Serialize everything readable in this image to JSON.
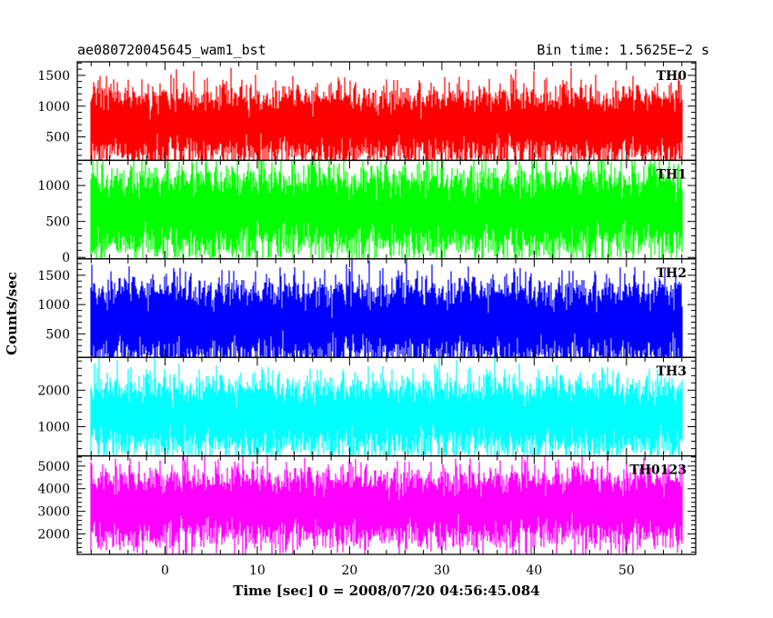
{
  "chart_data": {
    "type": "line",
    "title_left": "ae080720045645_wam1_bst",
    "title_right": "Bin time: 1.5625E−2 s",
    "ylabel": "Counts/sec",
    "xlabel": "Time [sec] 0 = 2008/07/20 04:56:45.084",
    "xlim": [
      -9.5,
      57.5
    ],
    "x_data_range": [
      -8,
      56
    ],
    "xticks_major": [
      0,
      10,
      20,
      30,
      40,
      50
    ],
    "xtick_minor_step": 2,
    "panels": [
      {
        "name": "TH0",
        "color": "#ff0000",
        "ylim": [
          120,
          1720
        ],
        "yticks": [
          500,
          1000,
          1500
        ],
        "ytick_minor_step": 100,
        "mean": 700,
        "typical_low": 300,
        "typical_high": 1500
      },
      {
        "name": "TH1",
        "color": "#00ff00",
        "ylim": [
          -20,
          1350
        ],
        "yticks": [
          0,
          500,
          1000
        ],
        "ytick_minor_step": 100,
        "mean": 650,
        "typical_low": 100,
        "typical_high": 1300
      },
      {
        "name": "TH2",
        "color": "#0000ff",
        "ylim": [
          100,
          1780
        ],
        "yticks": [
          500,
          1000,
          1500
        ],
        "ytick_minor_step": 100,
        "mean": 700,
        "typical_low": 200,
        "typical_high": 1650
      },
      {
        "name": "TH3",
        "color": "#00ffff",
        "ylim": [
          200,
          2900
        ],
        "yticks": [
          1000,
          2000
        ],
        "ytick_minor_step": 200,
        "mean": 1300,
        "typical_low": 500,
        "typical_high": 2600
      },
      {
        "name": "TH0123",
        "color": "#ff00ff",
        "ylim": [
          1100,
          5450
        ],
        "yticks": [
          2000,
          3000,
          4000,
          5000
        ],
        "ytick_minor_step": 200,
        "mean": 3200,
        "typical_low": 1700,
        "typical_high": 5000
      }
    ]
  }
}
